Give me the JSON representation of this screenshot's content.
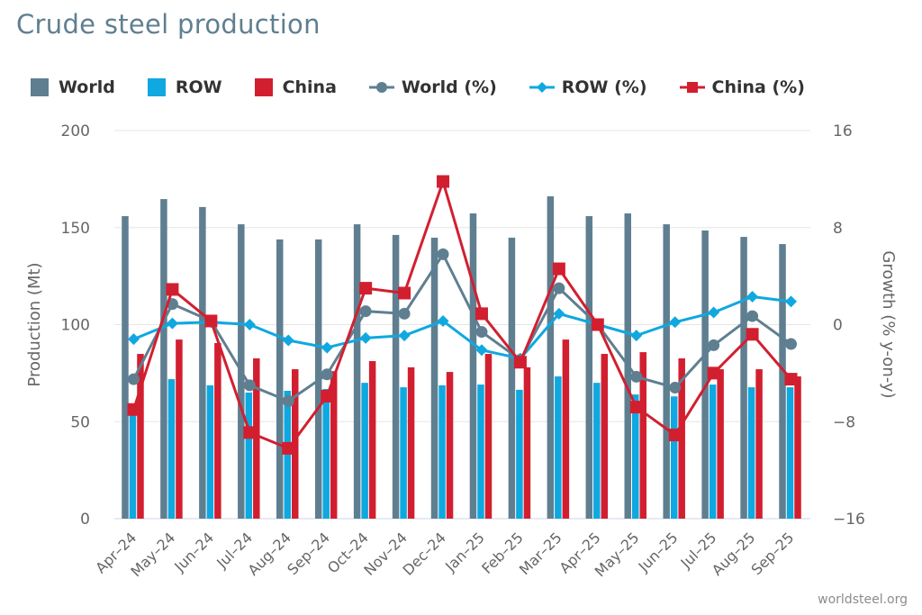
{
  "title": "Crude steel production",
  "credit": "worldsteel.org",
  "colors": {
    "world": "#5f7f91",
    "row": "#0fa8e0",
    "china": "#d21f30",
    "grid": "#e6e6e6",
    "text": "#666666"
  },
  "legend": [
    {
      "label": "World",
      "kind": "bar",
      "series": "world",
      "icon": "square-swatch"
    },
    {
      "label": "ROW",
      "kind": "bar",
      "series": "row",
      "icon": "square-swatch"
    },
    {
      "label": "China",
      "kind": "bar",
      "series": "china",
      "icon": "square-swatch"
    },
    {
      "label": "World (%)",
      "kind": "line",
      "series": "world",
      "icon": "line-circle-marker"
    },
    {
      "label": "ROW (%)",
      "kind": "line",
      "series": "row",
      "icon": "line-diamond-marker"
    },
    {
      "label": "China (%)",
      "kind": "line",
      "series": "china",
      "icon": "line-square-marker"
    }
  ],
  "chart_data": {
    "type": "bar",
    "title": "Crude steel production",
    "categories": [
      "Apr-24",
      "May-24",
      "Jun-24",
      "Jul-24",
      "Aug-24",
      "Sep-24",
      "Oct-24",
      "Nov-24",
      "Dec-24",
      "Jan-25",
      "Feb-25",
      "Mar-25",
      "Apr-25",
      "May-25",
      "Jun-25",
      "Jul-25",
      "Aug-25",
      "Sep-25"
    ],
    "ylabel": "Production (Mt)",
    "ylim": [
      0,
      200
    ],
    "yticks": [
      "0",
      "50",
      "100",
      "150",
      "200"
    ],
    "y2label": "Growth (% y-on-y)",
    "y2lim": [
      -16,
      16
    ],
    "y2ticks": [
      "-16",
      "-8",
      "0",
      "8",
      "16"
    ],
    "grid": true,
    "legend_position": "top",
    "series": [
      {
        "name": "World",
        "type": "bar",
        "axis": "left",
        "color_key": "world",
        "values": [
          155.9,
          164.7,
          160.6,
          151.7,
          143.9,
          143.9,
          151.7,
          146.2,
          144.8,
          157.3,
          144.8,
          166.1,
          155.9,
          157.3,
          151.7,
          148.5,
          145.2,
          141.5
        ]
      },
      {
        "name": "ROW",
        "type": "bar",
        "axis": "left",
        "color_key": "row",
        "values": [
          56.0,
          71.9,
          68.7,
          65.0,
          65.9,
          66.8,
          70.0,
          67.7,
          68.7,
          69.1,
          66.4,
          73.3,
          70.0,
          64.0,
          63.0,
          69.1,
          67.7,
          67.7
        ]
      },
      {
        "name": "China",
        "type": "bar",
        "axis": "left",
        "color_key": "china",
        "values": [
          84.9,
          92.3,
          90.5,
          82.6,
          77.0,
          76.0,
          81.2,
          78.0,
          75.6,
          84.9,
          78.0,
          92.3,
          84.9,
          85.8,
          82.6,
          77.0,
          77.0,
          73.3
        ]
      },
      {
        "name": "World (%)",
        "type": "line",
        "axis": "right",
        "marker": "circle",
        "color_key": "world",
        "values": [
          -4.5,
          1.7,
          0.3,
          -5.0,
          -6.3,
          -4.1,
          1.1,
          0.9,
          5.8,
          -0.6,
          -2.9,
          3.0,
          0.0,
          -4.3,
          -5.2,
          -1.7,
          0.7,
          -1.6
        ]
      },
      {
        "name": "ROW (%)",
        "type": "line",
        "axis": "right",
        "marker": "diamond",
        "color_key": "row",
        "values": [
          -1.2,
          0.1,
          0.2,
          0.0,
          -1.3,
          -1.9,
          -1.1,
          -0.9,
          0.3,
          -2.1,
          -2.8,
          0.9,
          0.0,
          -0.9,
          0.2,
          1.0,
          2.3,
          1.9
        ]
      },
      {
        "name": "China (%)",
        "type": "line",
        "axis": "right",
        "marker": "square",
        "color_key": "china",
        "values": [
          -7.0,
          2.9,
          0.3,
          -8.9,
          -10.2,
          -5.9,
          3.0,
          2.6,
          11.8,
          0.9,
          -3.1,
          4.6,
          0.0,
          -6.8,
          -9.1,
          -4.0,
          -0.8,
          -4.5
        ]
      }
    ]
  }
}
